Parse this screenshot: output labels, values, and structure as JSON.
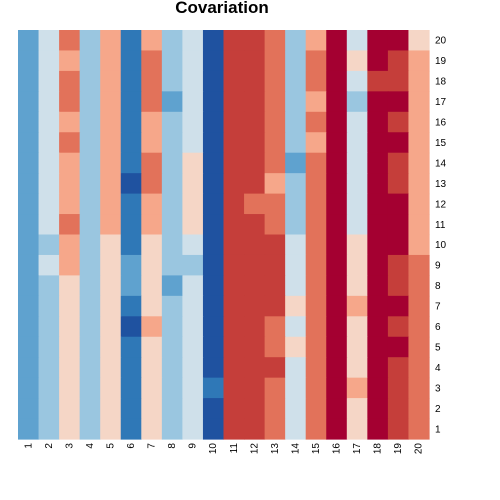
{
  "chart_data": {
    "type": "heatmap",
    "title": "Covariation",
    "palette": {
      "1": "#1f52a0",
      "2": "#2f78b7",
      "3": "#5fa2cf",
      "4": "#9ac6e0",
      "5": "#cfe0ea",
      "6": "#f5d6c6",
      "7": "#f6a78a",
      "8": "#e2725a",
      "9": "#c53e3a",
      "10": "#a40031"
    },
    "x_labels": [
      "1",
      "2",
      "3",
      "4",
      "5",
      "6",
      "7",
      "8",
      "9",
      "10",
      "11",
      "12",
      "13",
      "14",
      "15",
      "16",
      "17",
      "18",
      "19",
      "20"
    ],
    "y_labels": [
      "20",
      "19",
      "18",
      "17",
      "16",
      "15",
      "14",
      "13",
      "12",
      "11",
      "10",
      "9",
      "8",
      "7",
      "6",
      "5",
      "4",
      "3",
      "2",
      "1"
    ],
    "rows": [
      [
        3,
        5,
        8,
        4,
        7,
        2,
        7,
        4,
        5,
        1,
        9,
        9,
        8,
        4,
        7,
        10,
        5,
        10,
        10,
        6
      ],
      [
        3,
        5,
        7,
        4,
        7,
        2,
        8,
        4,
        5,
        1,
        9,
        9,
        8,
        4,
        8,
        10,
        6,
        10,
        9,
        7
      ],
      [
        3,
        5,
        8,
        4,
        7,
        2,
        8,
        4,
        5,
        1,
        9,
        9,
        8,
        4,
        8,
        10,
        5,
        9,
        9,
        7
      ],
      [
        3,
        5,
        8,
        4,
        7,
        2,
        8,
        3,
        5,
        1,
        9,
        9,
        8,
        4,
        7,
        10,
        4,
        10,
        10,
        7
      ],
      [
        3,
        5,
        7,
        4,
        7,
        2,
        7,
        4,
        5,
        1,
        9,
        9,
        8,
        4,
        8,
        10,
        5,
        10,
        9,
        7
      ],
      [
        3,
        5,
        8,
        4,
        7,
        2,
        7,
        4,
        5,
        1,
        9,
        9,
        8,
        4,
        7,
        10,
        5,
        10,
        10,
        7
      ],
      [
        3,
        5,
        7,
        4,
        7,
        2,
        8,
        4,
        6,
        1,
        9,
        9,
        8,
        3,
        8,
        10,
        5,
        10,
        9,
        7
      ],
      [
        3,
        5,
        7,
        4,
        7,
        1,
        8,
        4,
        6,
        1,
        9,
        9,
        7,
        4,
        8,
        10,
        5,
        10,
        9,
        7
      ],
      [
        3,
        5,
        7,
        4,
        7,
        2,
        7,
        4,
        6,
        1,
        9,
        8,
        8,
        4,
        8,
        10,
        5,
        10,
        10,
        7
      ],
      [
        3,
        5,
        8,
        4,
        7,
        2,
        7,
        4,
        6,
        1,
        9,
        9,
        8,
        4,
        8,
        10,
        5,
        10,
        10,
        7
      ],
      [
        3,
        4,
        7,
        4,
        6,
        2,
        6,
        4,
        5,
        1,
        9,
        9,
        9,
        5,
        8,
        10,
        6,
        10,
        10,
        7
      ],
      [
        3,
        5,
        7,
        4,
        6,
        3,
        6,
        4,
        4,
        1,
        9,
        9,
        9,
        5,
        8,
        10,
        6,
        10,
        9,
        8
      ],
      [
        3,
        4,
        6,
        4,
        6,
        3,
        6,
        3,
        5,
        1,
        9,
        9,
        9,
        5,
        8,
        10,
        6,
        10,
        9,
        8
      ],
      [
        3,
        4,
        6,
        4,
        6,
        2,
        6,
        4,
        5,
        1,
        9,
        9,
        9,
        6,
        8,
        10,
        7,
        10,
        10,
        8
      ],
      [
        3,
        4,
        6,
        4,
        6,
        1,
        7,
        4,
        5,
        1,
        9,
        9,
        8,
        5,
        8,
        10,
        6,
        10,
        9,
        8
      ],
      [
        3,
        4,
        6,
        4,
        6,
        2,
        6,
        4,
        5,
        1,
        9,
        9,
        8,
        6,
        8,
        10,
        6,
        10,
        10,
        8
      ],
      [
        3,
        4,
        6,
        4,
        6,
        2,
        6,
        4,
        5,
        1,
        9,
        9,
        9,
        5,
        8,
        10,
        6,
        10,
        9,
        8
      ],
      [
        3,
        4,
        6,
        4,
        6,
        2,
        6,
        4,
        5,
        2,
        9,
        9,
        8,
        5,
        8,
        10,
        7,
        10,
        9,
        8
      ],
      [
        3,
        4,
        6,
        4,
        6,
        2,
        6,
        4,
        5,
        1,
        9,
        9,
        8,
        5,
        8,
        10,
        6,
        10,
        9,
        8
      ],
      [
        3,
        4,
        6,
        4,
        6,
        2,
        6,
        4,
        5,
        1,
        9,
        9,
        8,
        5,
        8,
        10,
        6,
        10,
        9,
        8
      ]
    ]
  }
}
